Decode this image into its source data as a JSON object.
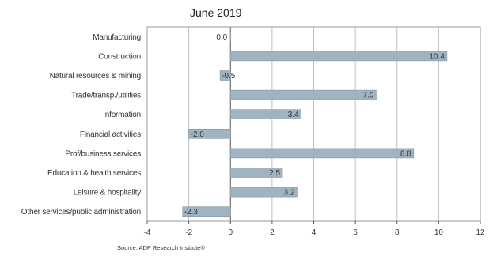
{
  "chart_data": {
    "type": "bar",
    "orientation": "horizontal",
    "title": "June 2019",
    "categories": [
      "Manufacturing",
      "Construction",
      "Natural resources & mining",
      "Trade/transp./utilities",
      "Information",
      "Financial activities",
      "Prof/business services",
      "Education & health services",
      "Leisure & hospitality",
      "Other services/public administration"
    ],
    "values": [
      0.0,
      10.4,
      -0.5,
      7.0,
      3.4,
      -2.0,
      8.8,
      2.5,
      3.2,
      -2.3
    ],
    "data_labels": [
      "0.0",
      "10.4",
      "-0.5",
      "7.0",
      "3.4",
      "-2.0",
      "8.8",
      "2.5",
      "3.2",
      "-2.3"
    ],
    "xlim": [
      -4,
      12
    ],
    "xticks": [
      -4,
      -2,
      0,
      2,
      4,
      6,
      8,
      10,
      12
    ],
    "grid": true,
    "bar_color": "#9fb4c0",
    "source": "Source: ADP Research Institute®"
  }
}
